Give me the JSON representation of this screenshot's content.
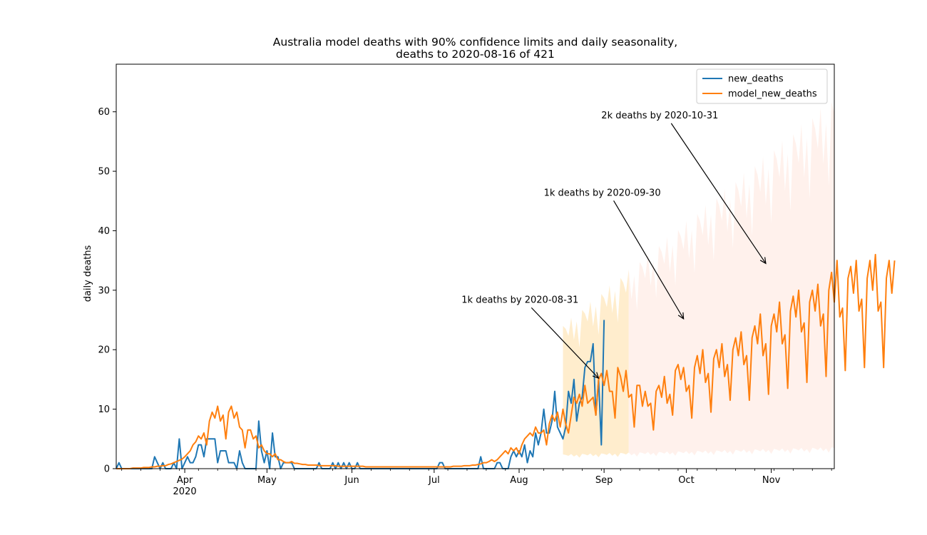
{
  "chart_data": {
    "type": "line",
    "title_line1": "Australia model deaths with 90% confidence limits and daily seasonality,",
    "title_line2": "deaths to 2020-08-16 of 421",
    "ylabel": "daily deaths",
    "xlabel": "",
    "x_range": [
      "2020-03-07",
      "2020-11-24"
    ],
    "ylim": [
      0,
      68
    ],
    "y_ticks": [
      0,
      10,
      20,
      30,
      40,
      50,
      60
    ],
    "x_ticks": [
      {
        "date": "2020-04-01",
        "label": "Apr"
      },
      {
        "date": "2020-05-01",
        "label": "May"
      },
      {
        "date": "2020-06-01",
        "label": "Jun"
      },
      {
        "date": "2020-07-01",
        "label": "Jul"
      },
      {
        "date": "2020-08-01",
        "label": "Aug"
      },
      {
        "date": "2020-09-01",
        "label": "Sep"
      },
      {
        "date": "2020-10-01",
        "label": "Oct"
      },
      {
        "date": "2020-11-01",
        "label": "Nov"
      }
    ],
    "x_year_label": {
      "date": "2020-04-01",
      "label": "2020"
    },
    "legend": {
      "placement": "upper-right",
      "entries": [
        {
          "name": "new_deaths",
          "color": "#1f77b4"
        },
        {
          "name": "model_new_deaths",
          "color": "#ff7f0e"
        }
      ]
    },
    "colors": {
      "actual": "#1f77b4",
      "model": "#ff7f0e",
      "ci_fill": "#ffe8c0",
      "ci_fill_late": "#fff0ea"
    },
    "series": [
      {
        "name": "new_deaths",
        "x_start": "2020-03-07",
        "values": [
          0,
          1,
          0,
          0,
          0,
          0,
          0,
          0,
          0,
          0,
          0,
          0,
          0,
          0,
          2,
          1,
          0,
          1,
          0,
          0,
          0,
          1,
          0,
          5,
          0,
          1,
          2,
          1,
          1,
          2,
          4,
          4,
          2,
          5,
          5,
          5,
          5,
          1,
          3,
          3,
          3,
          1,
          1,
          1,
          0,
          3,
          1,
          0,
          0,
          0,
          0,
          0,
          8,
          3,
          1,
          3,
          0,
          6,
          2,
          2,
          0,
          1,
          1,
          1,
          1,
          0,
          0,
          0,
          0,
          0,
          0,
          0,
          0,
          0,
          1,
          0,
          0,
          0,
          0,
          1,
          0,
          1,
          0,
          1,
          0,
          1,
          0,
          0,
          1,
          0,
          0,
          0,
          0,
          0,
          0,
          0,
          0,
          0,
          0,
          0,
          0,
          0,
          0,
          0,
          0,
          0,
          0,
          0,
          0,
          0,
          0,
          0,
          0,
          0,
          0,
          0,
          0,
          0,
          1,
          1,
          0,
          0,
          0,
          0,
          0,
          0,
          0,
          0,
          0,
          0,
          0,
          0,
          0,
          2,
          0,
          0,
          0,
          0,
          0,
          1,
          1,
          0,
          0,
          0,
          2,
          3,
          2,
          3,
          2,
          4,
          1,
          3,
          2,
          6,
          4,
          6,
          10,
          6,
          6,
          8,
          13,
          7,
          6,
          5,
          7,
          13,
          11,
          15,
          8,
          11,
          12,
          17,
          18,
          18,
          21,
          9,
          15,
          4,
          25
        ]
      },
      {
        "name": "model_new_deaths",
        "x_start": "2020-03-07",
        "values": [
          0,
          0,
          0,
          0,
          0,
          0,
          0.1,
          0.1,
          0.1,
          0.1,
          0.2,
          0.2,
          0.2,
          0.3,
          0.3,
          0.4,
          0.4,
          0.5,
          0.5,
          0.7,
          0.8,
          1,
          1.2,
          1.4,
          1.6,
          2,
          2.5,
          3,
          4,
          4.5,
          5.5,
          5,
          6,
          4,
          8,
          9.5,
          8.5,
          10.5,
          8,
          9,
          5,
          9.5,
          10.5,
          8.5,
          9.5,
          7,
          6.5,
          3.5,
          6.5,
          6.5,
          5,
          5.5,
          3.5,
          4,
          3,
          2.5,
          2.5,
          2,
          2.5,
          1.5,
          1.5,
          1.2,
          1,
          1,
          1.2,
          0.9,
          0.9,
          0.8,
          0.7,
          0.7,
          0.6,
          0.6,
          0.6,
          0.6,
          0.5,
          0.5,
          0.5,
          0.5,
          0.5,
          0.5,
          0.5,
          0.4,
          0.4,
          0.4,
          0.4,
          0.4,
          0.4,
          0.4,
          0.4,
          0.4,
          0.4,
          0.3,
          0.3,
          0.3,
          0.3,
          0.3,
          0.3,
          0.3,
          0.3,
          0.3,
          0.3,
          0.3,
          0.3,
          0.3,
          0.3,
          0.3,
          0.3,
          0.3,
          0.3,
          0.3,
          0.3,
          0.3,
          0.3,
          0.3,
          0.3,
          0.3,
          0.3,
          0.3,
          0.3,
          0.3,
          0.3,
          0.3,
          0.3,
          0.4,
          0.4,
          0.4,
          0.4,
          0.5,
          0.5,
          0.5,
          0.6,
          0.6,
          0.7,
          0.8,
          1,
          1,
          1.2,
          1.5,
          1.2,
          1.5,
          2,
          2.5,
          3,
          2.5,
          3.5,
          3,
          3.5,
          2.5,
          4,
          5,
          5.5,
          6,
          5.5,
          7,
          6,
          6,
          6.5,
          4,
          7.5,
          9,
          8,
          9.5,
          7,
          10,
          7.5,
          6,
          9,
          12,
          11,
          12.5,
          10.5,
          14,
          11,
          11.5,
          12,
          9,
          15,
          16,
          14,
          16.5,
          13,
          13,
          8.5,
          17,
          15.5,
          13,
          16.5,
          12,
          12.5,
          7,
          14,
          14,
          10.5,
          13,
          10.5,
          11,
          6.5,
          13,
          14,
          12,
          15.5,
          11,
          12.5,
          9,
          16.5,
          17.5,
          15,
          17,
          13,
          14,
          8.5,
          17,
          19,
          16,
          20,
          14.5,
          16,
          9.5,
          18.5,
          20,
          17,
          21,
          15.5,
          17.5,
          11.5,
          20,
          22,
          19,
          23,
          17.5,
          19,
          11.5,
          22,
          24,
          21,
          26,
          19,
          21,
          12.5,
          24,
          26,
          23,
          28,
          21,
          22.5,
          13.5,
          26.5,
          29,
          25.5,
          30,
          23,
          24.5,
          14.5,
          28,
          30,
          26.5,
          31,
          24,
          26,
          15.5,
          30,
          33,
          28,
          35,
          25.5,
          27,
          16.5,
          32,
          34,
          29.5,
          35,
          26.5,
          28.5,
          17,
          32,
          35,
          30,
          36,
          26.5,
          28,
          17,
          32,
          35,
          29.5,
          35
        ]
      }
    ],
    "confidence_band": {
      "x_start": "2020-08-17",
      "lower_mean_start": 2,
      "lower_mean_end": 3,
      "upper_mean_start": 24,
      "upper_mean_end": 62
    },
    "annotations": [
      {
        "text": "1k deaths by 2020-08-31",
        "text_date": "2020-07-11",
        "text_y": 28.5,
        "arrow_date": "2020-08-30",
        "arrow_y": 15.2
      },
      {
        "text": "1k deaths by 2020-09-30",
        "text_date": "2020-08-10",
        "text_y": 46.5,
        "arrow_date": "2020-09-30",
        "arrow_y": 25.2
      },
      {
        "text": "2k deaths by 2020-10-31",
        "text_date": "2020-08-31",
        "text_y": 59.5,
        "arrow_date": "2020-10-30",
        "arrow_y": 34.5
      }
    ]
  }
}
